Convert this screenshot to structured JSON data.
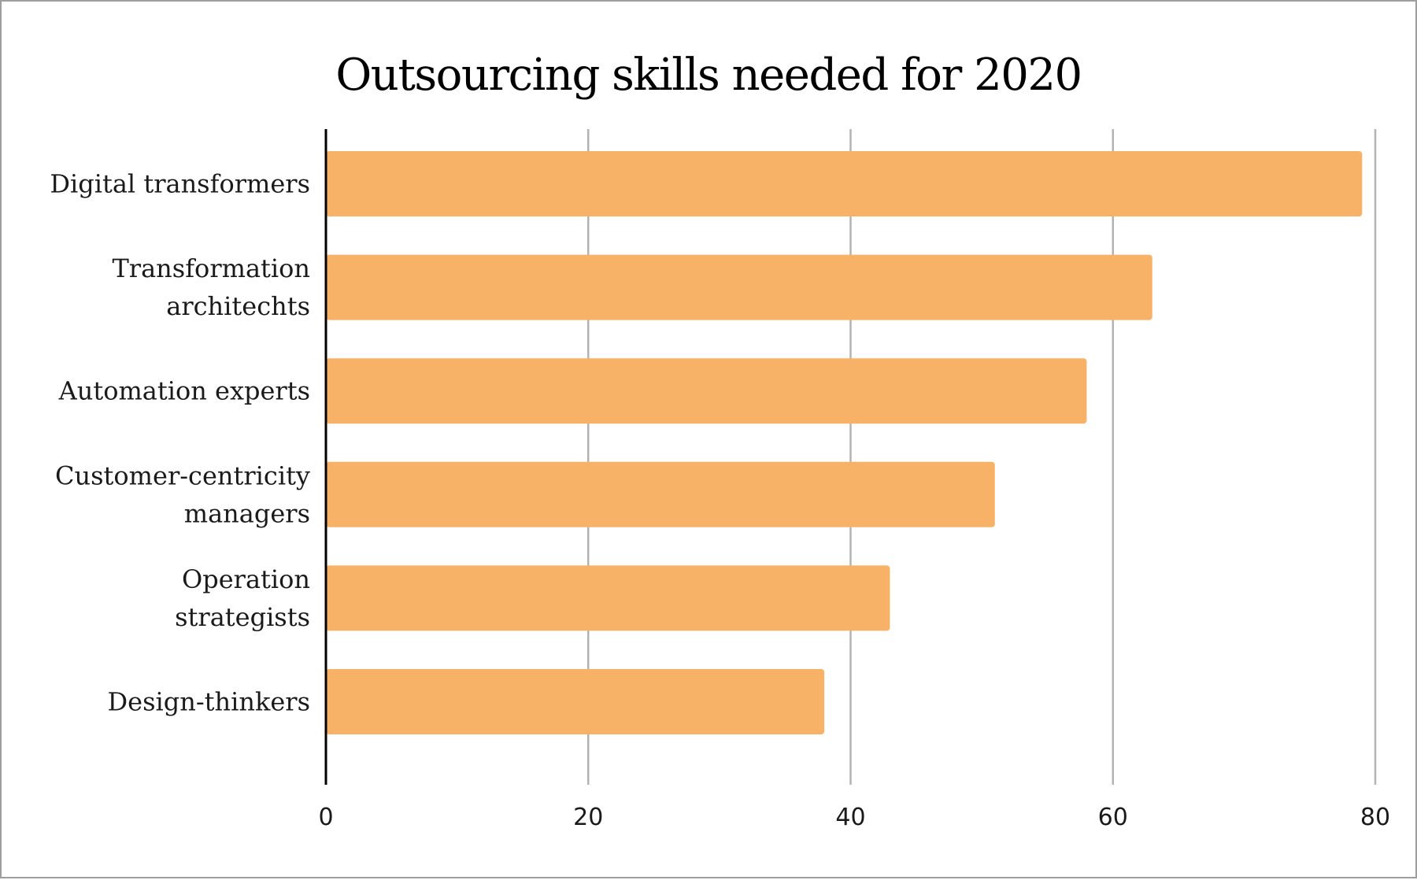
{
  "chart_data": {
    "type": "bar",
    "orientation": "horizontal",
    "title": "Outsourcing skills needed for 2020",
    "categories": [
      [
        "Digital transformers"
      ],
      [
        "Transformation",
        "architechts"
      ],
      [
        "Automation experts"
      ],
      [
        "Customer-centricity",
        "managers"
      ],
      [
        "Operation",
        "strategists"
      ],
      [
        "Design-thinkers"
      ]
    ],
    "values": [
      79,
      63,
      58,
      51,
      43,
      38
    ],
    "xlim": [
      0,
      80
    ],
    "xticks": [
      0,
      20,
      40,
      60,
      80
    ],
    "xlabel": "",
    "ylabel": "",
    "grid": "vertical",
    "bar_color": "#F7B267",
    "grid_color": "#b3b3b3",
    "axis_color": "#000000"
  }
}
